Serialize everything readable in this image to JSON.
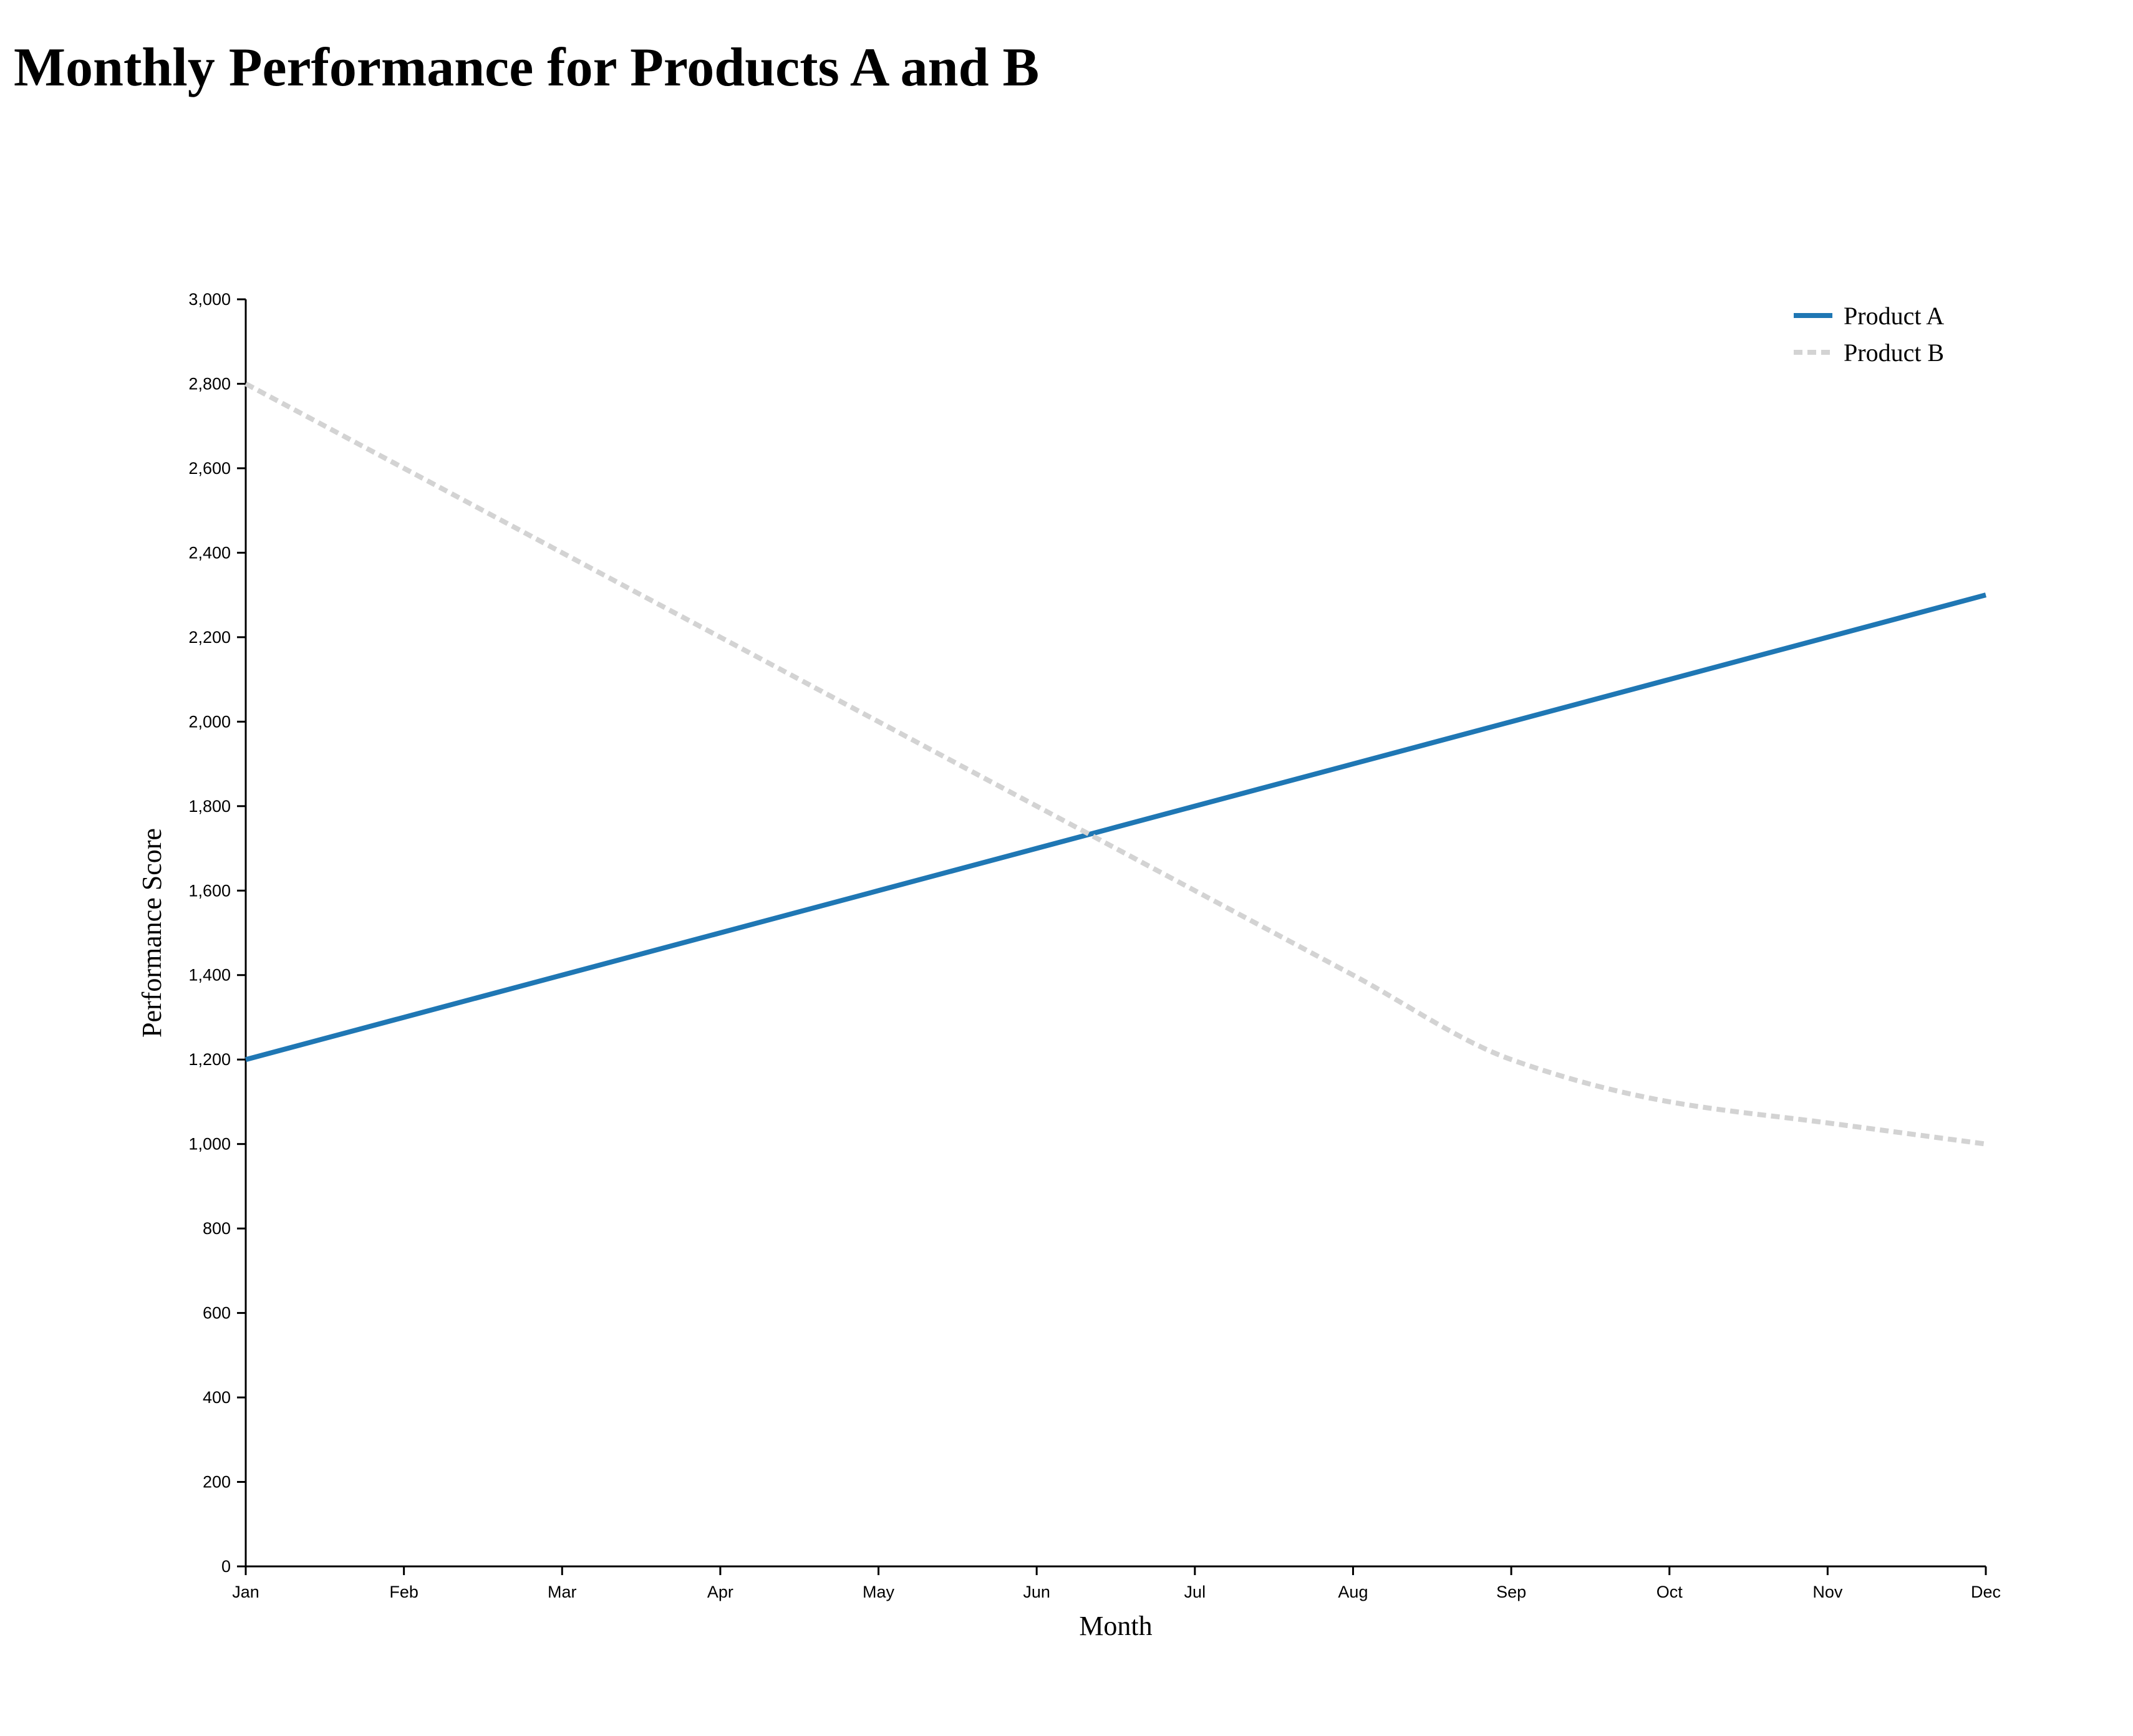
{
  "chart_data": {
    "type": "line",
    "title": "Monthly Performance for Products A and B",
    "xlabel": "Month",
    "ylabel": "Performance Score",
    "categories": [
      "Jan",
      "Feb",
      "Mar",
      "Apr",
      "May",
      "Jun",
      "Jul",
      "Aug",
      "Sep",
      "Oct",
      "Nov",
      "Dec"
    ],
    "ylim": [
      0,
      3000
    ],
    "yticks": [
      0,
      200,
      400,
      600,
      800,
      1000,
      1200,
      1400,
      1600,
      1800,
      2000,
      2200,
      2400,
      2600,
      2800,
      3000
    ],
    "ytick_labels": [
      "0",
      "200",
      "400",
      "600",
      "800",
      "1,000",
      "1,200",
      "1,400",
      "1,600",
      "1,800",
      "2,000",
      "2,200",
      "2,400",
      "2,600",
      "2,800",
      "3,000"
    ],
    "grid": false,
    "legend_position": "top-right",
    "series": [
      {
        "name": "Product A",
        "values": [
          1200,
          1300,
          1400,
          1500,
          1600,
          1700,
          1800,
          1900,
          2000,
          2100,
          2200,
          2300
        ],
        "color": "#1f77b4",
        "style": "solid"
      },
      {
        "name": "Product B",
        "values": [
          2800,
          2600,
          2400,
          2200,
          2000,
          1800,
          1600,
          1400,
          1200,
          1100,
          1050,
          1000
        ],
        "color": "#d3d3d3",
        "style": "dashed"
      }
    ]
  }
}
